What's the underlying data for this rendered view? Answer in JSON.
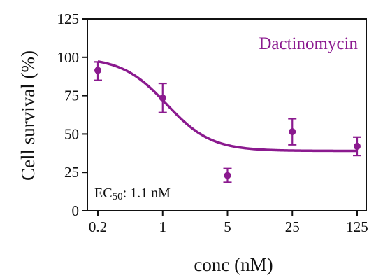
{
  "chart_data": {
    "type": "scatter",
    "title": "",
    "xlabel": "conc (nM)",
    "ylabel": "Cell survival (%)",
    "x_scale": "log",
    "xlim": [
      0.2,
      125
    ],
    "ylim": [
      0,
      125
    ],
    "x_ticks": [
      0.2,
      1,
      5,
      25,
      125
    ],
    "x_tick_labels": [
      "0.2",
      "1",
      "5",
      "25",
      "125"
    ],
    "y_ticks": [
      0,
      25,
      50,
      75,
      100,
      125
    ],
    "y_tick_labels": [
      "0",
      "25",
      "50",
      "75",
      "100",
      "125"
    ],
    "grid": false,
    "series": [
      {
        "name": "Dactinomycin",
        "color": "#8b1a8f",
        "points": [
          {
            "x": 0.2,
            "y": 91.5,
            "err_low": 85,
            "err_high": 97
          },
          {
            "x": 1,
            "y": 73.5,
            "err_low": 64,
            "err_high": 83
          },
          {
            "x": 5,
            "y": 23,
            "err_low": 18.5,
            "err_high": 27.5
          },
          {
            "x": 25,
            "y": 51.5,
            "err_low": 43,
            "err_high": 60
          },
          {
            "x": 125,
            "y": 42,
            "err_low": 36,
            "err_high": 48
          }
        ],
        "fit": {
          "top": 100,
          "bottom": 39,
          "ec50": 1.1,
          "hill": 1.8
        }
      }
    ],
    "annotation": {
      "prefix": "EC",
      "sub": "50",
      "suffix": ": 1.1 nM"
    }
  }
}
